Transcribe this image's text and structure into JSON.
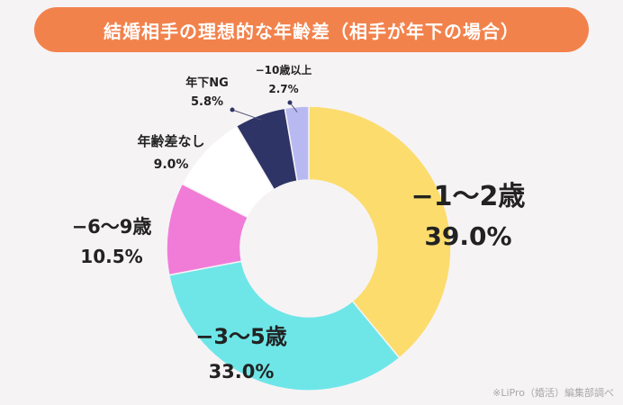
{
  "header": {
    "title": "結婚相手の理想的な年齢差（相手が年下の場合）"
  },
  "source_note": "※LiPro（婚活）編集部調べ",
  "chart_data": {
    "type": "pie",
    "donut": true,
    "title": "結婚相手の理想的な年齢差（相手が年下の場合）",
    "unit": "%",
    "slices": [
      {
        "label": "−1〜2歳",
        "value": 39.0,
        "value_text": "39.0%",
        "color": "#fcdc6c"
      },
      {
        "label": "−3〜5歳",
        "value": 33.0,
        "value_text": "33.0%",
        "color": "#6ee6e8"
      },
      {
        "label": "−6〜9歳",
        "value": 10.5,
        "value_text": "10.5%",
        "color": "#f07cd8"
      },
      {
        "label": "年齢差なし",
        "value": 9.0,
        "value_text": "9.0%",
        "color": "#ffffff"
      },
      {
        "label": "年下NG",
        "value": 5.8,
        "value_text": "5.8%",
        "color": "#2e3466"
      },
      {
        "label": "−10歳以上",
        "value": 2.7,
        "value_text": "2.7%",
        "color": "#b9b9f2"
      }
    ]
  }
}
